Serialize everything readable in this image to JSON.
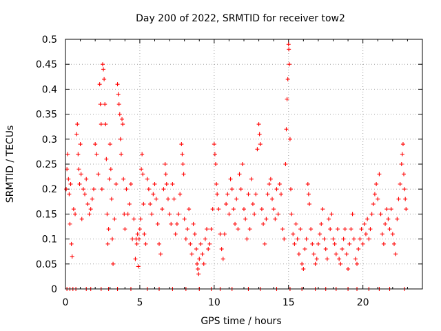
{
  "colors": {
    "series": "#ff0000",
    "axis": "#000000",
    "grid": "#a0a0a0"
  },
  "chart_data": {
    "type": "scatter",
    "title": "Day 200 of 2022, SRMTID for receiver tow2",
    "xlabel": "GPS time / hours",
    "ylabel": "SRMTID / TECUs",
    "xlim": [
      0,
      24
    ],
    "ylim": [
      0,
      0.5
    ],
    "x_ticks": [
      0,
      5,
      10,
      15,
      20
    ],
    "x_tick_labels": [
      "0",
      "5",
      "10",
      "15",
      "20"
    ],
    "y_ticks": [
      0,
      0.05,
      0.1,
      0.15,
      0.2,
      0.25,
      0.3,
      0.35,
      0.4,
      0.45,
      0.5
    ],
    "y_tick_labels": [
      "0",
      "0.05",
      "0.1",
      "0.15",
      "0.2",
      "0.25",
      "0.3",
      "0.35",
      "0.4",
      "0.45",
      "0.5"
    ],
    "grid": true,
    "marker": "plus",
    "series": [
      {
        "name": "SRMTID",
        "points": [
          [
            0.05,
            0.2
          ],
          [
            0.1,
            0.24
          ],
          [
            0.15,
            0.27
          ],
          [
            0.2,
            0.22
          ],
          [
            0.25,
            0.19
          ],
          [
            0.3,
            0.13
          ],
          [
            0.35,
            0.21
          ],
          [
            0.4,
            0.09
          ],
          [
            0.45,
            0.065
          ],
          [
            0.55,
            0.16
          ],
          [
            0.65,
            0.15
          ],
          [
            0.75,
            0.31
          ],
          [
            0.8,
            0.33
          ],
          [
            0.85,
            0.27
          ],
          [
            0.9,
            0.24
          ],
          [
            0.95,
            0.21
          ],
          [
            1.0,
            0.29
          ],
          [
            1.05,
            0.23
          ],
          [
            1.1,
            0.14
          ],
          [
            1.2,
            0.2
          ],
          [
            1.3,
            0.19
          ],
          [
            1.4,
            0.22
          ],
          [
            1.5,
            0.17
          ],
          [
            1.6,
            0.15
          ],
          [
            1.7,
            0.16
          ],
          [
            1.8,
            0.18
          ],
          [
            1.9,
            0.2
          ],
          [
            2.0,
            0.29
          ],
          [
            2.1,
            0.27
          ],
          [
            2.2,
            0.23
          ],
          [
            2.3,
            0.41
          ],
          [
            2.35,
            0.37
          ],
          [
            2.4,
            0.33
          ],
          [
            2.45,
            0.2
          ],
          [
            2.5,
            0.45
          ],
          [
            2.55,
            0.44
          ],
          [
            2.6,
            0.42
          ],
          [
            2.65,
            0.37
          ],
          [
            2.7,
            0.33
          ],
          [
            2.75,
            0.26
          ],
          [
            2.8,
            0.15
          ],
          [
            2.85,
            0.09
          ],
          [
            2.9,
            0.12
          ],
          [
            2.95,
            0.22
          ],
          [
            3.0,
            0.29
          ],
          [
            3.05,
            0.24
          ],
          [
            3.1,
            0.18
          ],
          [
            3.15,
            0.1
          ],
          [
            3.2,
            0.05
          ],
          [
            3.3,
            0.14
          ],
          [
            3.4,
            0.21
          ],
          [
            3.5,
            0.41
          ],
          [
            3.55,
            0.39
          ],
          [
            3.6,
            0.37
          ],
          [
            3.65,
            0.35
          ],
          [
            3.7,
            0.3
          ],
          [
            3.75,
            0.27
          ],
          [
            3.8,
            0.34
          ],
          [
            3.85,
            0.33
          ],
          [
            3.9,
            0.22
          ],
          [
            3.95,
            0.15
          ],
          [
            4.0,
            0.12
          ],
          [
            4.1,
            0.2
          ],
          [
            4.2,
            0.15
          ],
          [
            4.3,
            0.17
          ],
          [
            4.4,
            0.21
          ],
          [
            4.5,
            0.1
          ],
          [
            4.6,
            0.14
          ],
          [
            4.7,
            0.06
          ],
          [
            4.75,
            0.1
          ],
          [
            4.8,
            0.09
          ],
          [
            4.85,
            0.11
          ],
          [
            4.9,
            0.045
          ],
          [
            4.95,
            0.1
          ],
          [
            5.0,
            0.12
          ],
          [
            5.05,
            0.14
          ],
          [
            5.1,
            0.24
          ],
          [
            5.15,
            0.27
          ],
          [
            5.2,
            0.23
          ],
          [
            5.25,
            0.17
          ],
          [
            5.3,
            0.11
          ],
          [
            5.4,
            0.09
          ],
          [
            5.5,
            0.22
          ],
          [
            5.6,
            0.2
          ],
          [
            5.7,
            0.17
          ],
          [
            5.8,
            0.15
          ],
          [
            5.9,
            0.19
          ],
          [
            6.0,
            0.21
          ],
          [
            6.1,
            0.18
          ],
          [
            6.2,
            0.13
          ],
          [
            6.3,
            0.09
          ],
          [
            6.4,
            0.07
          ],
          [
            6.5,
            0.16
          ],
          [
            6.6,
            0.2
          ],
          [
            6.7,
            0.25
          ],
          [
            6.75,
            0.23
          ],
          [
            6.8,
            0.21
          ],
          [
            6.9,
            0.18
          ],
          [
            7.0,
            0.15
          ],
          [
            7.1,
            0.13
          ],
          [
            7.2,
            0.21
          ],
          [
            7.3,
            0.18
          ],
          [
            7.4,
            0.11
          ],
          [
            7.5,
            0.13
          ],
          [
            7.6,
            0.15
          ],
          [
            7.7,
            0.19
          ],
          [
            7.8,
            0.29
          ],
          [
            7.85,
            0.27
          ],
          [
            7.9,
            0.25
          ],
          [
            7.95,
            0.23
          ],
          [
            8.0,
            0.14
          ],
          [
            8.1,
            0.1
          ],
          [
            8.2,
            0.12
          ],
          [
            8.3,
            0.16
          ],
          [
            8.4,
            0.09
          ],
          [
            8.5,
            0.07
          ],
          [
            8.6,
            0.13
          ],
          [
            8.7,
            0.11
          ],
          [
            8.8,
            0.08
          ],
          [
            8.85,
            0.05
          ],
          [
            8.9,
            0.04
          ],
          [
            8.95,
            0.03
          ],
          [
            9.0,
            0.06
          ],
          [
            9.1,
            0.09
          ],
          [
            9.2,
            0.07
          ],
          [
            9.3,
            0.05
          ],
          [
            9.4,
            0.1
          ],
          [
            9.5,
            0.12
          ],
          [
            9.6,
            0.08
          ],
          [
            9.7,
            0.09
          ],
          [
            9.8,
            0.12
          ],
          [
            9.9,
            0.16
          ],
          [
            10.0,
            0.29
          ],
          [
            10.05,
            0.27
          ],
          [
            10.1,
            0.25
          ],
          [
            10.15,
            0.21
          ],
          [
            10.2,
            0.19
          ],
          [
            10.3,
            0.16
          ],
          [
            10.4,
            0.11
          ],
          [
            10.5,
            0.08
          ],
          [
            10.6,
            0.06
          ],
          [
            10.7,
            0.11
          ],
          [
            10.8,
            0.17
          ],
          [
            10.9,
            0.19
          ],
          [
            11.0,
            0.15
          ],
          [
            11.1,
            0.22
          ],
          [
            11.2,
            0.2
          ],
          [
            11.3,
            0.16
          ],
          [
            11.4,
            0.13
          ],
          [
            11.5,
            0.18
          ],
          [
            11.6,
            0.12
          ],
          [
            11.7,
            0.23
          ],
          [
            11.8,
            0.2
          ],
          [
            11.9,
            0.25
          ],
          [
            12.0,
            0.16
          ],
          [
            12.1,
            0.14
          ],
          [
            12.2,
            0.1
          ],
          [
            12.3,
            0.19
          ],
          [
            12.4,
            0.12
          ],
          [
            12.5,
            0.22
          ],
          [
            12.6,
            0.17
          ],
          [
            12.7,
            0.15
          ],
          [
            12.8,
            0.19
          ],
          [
            12.9,
            0.28
          ],
          [
            13.0,
            0.33
          ],
          [
            13.05,
            0.31
          ],
          [
            13.1,
            0.29
          ],
          [
            13.2,
            0.16
          ],
          [
            13.3,
            0.13
          ],
          [
            13.4,
            0.09
          ],
          [
            13.5,
            0.14
          ],
          [
            13.6,
            0.19
          ],
          [
            13.7,
            0.21
          ],
          [
            13.8,
            0.22
          ],
          [
            13.9,
            0.18
          ],
          [
            14.0,
            0.16
          ],
          [
            14.1,
            0.14
          ],
          [
            14.2,
            0.2
          ],
          [
            14.3,
            0.15
          ],
          [
            14.4,
            0.21
          ],
          [
            14.5,
            0.19
          ],
          [
            14.6,
            0.12
          ],
          [
            14.7,
            0.1
          ],
          [
            14.8,
            0.25
          ],
          [
            14.85,
            0.32
          ],
          [
            14.9,
            0.38
          ],
          [
            14.95,
            0.42
          ],
          [
            15.0,
            0.49
          ],
          [
            15.02,
            0.48
          ],
          [
            15.05,
            0.45
          ],
          [
            15.1,
            0.3
          ],
          [
            15.15,
            0.2
          ],
          [
            15.2,
            0.15
          ],
          [
            15.3,
            0.11
          ],
          [
            15.4,
            0.09
          ],
          [
            15.5,
            0.13
          ],
          [
            15.6,
            0.1
          ],
          [
            15.7,
            0.07
          ],
          [
            15.8,
            0.12
          ],
          [
            15.9,
            0.05
          ],
          [
            16.0,
            0.04
          ],
          [
            16.1,
            0.08
          ],
          [
            16.2,
            0.1
          ],
          [
            16.3,
            0.21
          ],
          [
            16.35,
            0.19
          ],
          [
            16.4,
            0.17
          ],
          [
            16.5,
            0.12
          ],
          [
            16.6,
            0.09
          ],
          [
            16.7,
            0.07
          ],
          [
            16.8,
            0.05
          ],
          [
            16.9,
            0.06
          ],
          [
            17.0,
            0.09
          ],
          [
            17.1,
            0.11
          ],
          [
            17.2,
            0.13
          ],
          [
            17.3,
            0.16
          ],
          [
            17.4,
            0.1
          ],
          [
            17.5,
            0.08
          ],
          [
            17.6,
            0.06
          ],
          [
            17.7,
            0.14
          ],
          [
            17.8,
            0.12
          ],
          [
            17.9,
            0.15
          ],
          [
            18.0,
            0.1
          ],
          [
            18.1,
            0.09
          ],
          [
            18.2,
            0.07
          ],
          [
            18.3,
            0.12
          ],
          [
            18.4,
            0.06
          ],
          [
            18.5,
            0.05
          ],
          [
            18.6,
            0.08
          ],
          [
            18.7,
            0.1
          ],
          [
            18.8,
            0.12
          ],
          [
            18.9,
            0.07
          ],
          [
            19.0,
            0.04
          ],
          [
            19.1,
            0.09
          ],
          [
            19.2,
            0.12
          ],
          [
            19.3,
            0.15
          ],
          [
            19.4,
            0.1
          ],
          [
            19.5,
            0.06
          ],
          [
            19.6,
            0.05
          ],
          [
            19.7,
            0.08
          ],
          [
            19.8,
            0.1
          ],
          [
            19.9,
            0.12
          ],
          [
            20.0,
            0.09
          ],
          [
            20.1,
            0.13
          ],
          [
            20.2,
            0.11
          ],
          [
            20.3,
            0.14
          ],
          [
            20.4,
            0.1
          ],
          [
            20.5,
            0.12
          ],
          [
            20.6,
            0.15
          ],
          [
            20.7,
            0.17
          ],
          [
            20.8,
            0.19
          ],
          [
            20.9,
            0.21
          ],
          [
            21.0,
            0.18
          ],
          [
            21.1,
            0.23
          ],
          [
            21.2,
            0.15
          ],
          [
            21.3,
            0.11
          ],
          [
            21.4,
            0.09
          ],
          [
            21.5,
            0.13
          ],
          [
            21.6,
            0.16
          ],
          [
            21.7,
            0.14
          ],
          [
            21.8,
            0.12
          ],
          [
            21.9,
            0.16
          ],
          [
            22.0,
            0.11
          ],
          [
            22.1,
            0.09
          ],
          [
            22.2,
            0.07
          ],
          [
            22.3,
            0.14
          ],
          [
            22.4,
            0.18
          ],
          [
            22.5,
            0.21
          ],
          [
            22.6,
            0.25
          ],
          [
            22.65,
            0.27
          ],
          [
            22.7,
            0.29
          ],
          [
            22.75,
            0.23
          ],
          [
            22.8,
            0.2
          ],
          [
            22.85,
            0.18
          ],
          [
            22.9,
            0.16
          ],
          [
            0.1,
            0.0
          ],
          [
            0.3,
            0.0
          ],
          [
            0.5,
            0.0
          ],
          [
            0.7,
            0.0
          ],
          [
            1.4,
            0.0
          ],
          [
            1.7,
            0.0
          ],
          [
            2.4,
            0.0
          ],
          [
            2.9,
            0.0
          ],
          [
            3.5,
            0.0
          ],
          [
            4.4,
            0.0
          ],
          [
            5.5,
            0.0
          ],
          [
            6.3,
            0.0
          ],
          [
            7.2,
            0.0
          ],
          [
            8.1,
            0.0
          ],
          [
            9.0,
            0.0
          ],
          [
            9.8,
            0.0
          ],
          [
            10.4,
            0.0
          ],
          [
            11.2,
            0.0
          ],
          [
            12.3,
            0.0
          ],
          [
            13.1,
            0.0
          ],
          [
            14.2,
            0.0
          ],
          [
            15.1,
            0.0
          ],
          [
            15.9,
            0.0
          ],
          [
            16.8,
            0.0
          ],
          [
            17.5,
            0.0
          ],
          [
            18.2,
            0.0
          ],
          [
            19.0,
            0.0
          ],
          [
            19.6,
            0.0
          ],
          [
            20.4,
            0.0
          ],
          [
            21.1,
            0.0
          ],
          [
            21.8,
            0.0
          ],
          [
            22.8,
            0.0
          ]
        ]
      }
    ]
  }
}
